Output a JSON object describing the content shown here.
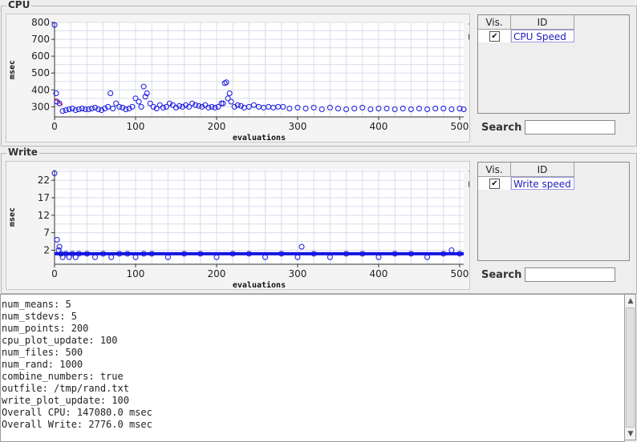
{
  "colors": {
    "point": "#1515e0",
    "mean_line": "#ff4040",
    "grid": "#d8dcea",
    "link_text": "#2020c0"
  },
  "cpu_panel": {
    "title": "CPU",
    "table": {
      "col_vis": "Vis.",
      "col_id": "ID",
      "row": {
        "visible": true,
        "id": "CPU Speed"
      }
    },
    "search_label": "Search",
    "search_value": ""
  },
  "write_panel": {
    "title": "Write",
    "table": {
      "col_vis": "Vis.",
      "col_id": "ID",
      "row": {
        "visible": true,
        "id": "Write speed"
      }
    },
    "search_label": "Search",
    "search_value": ""
  },
  "chart_data": [
    {
      "type": "scatter",
      "xlabel": "evaluations",
      "ylabel": "msec",
      "xlim": [
        0,
        505
      ],
      "ylim": [
        240,
        800
      ],
      "xticks": [
        0,
        100,
        200,
        300,
        400,
        500
      ],
      "yticks": [
        300,
        400,
        500,
        600,
        700,
        800
      ],
      "grid": true,
      "series": [
        {
          "values_note": "",
          "x": [
            0,
            2,
            3,
            6,
            10,
            14,
            18,
            22,
            26,
            30,
            34,
            38,
            42,
            46,
            50,
            54,
            58,
            62,
            66,
            69,
            72,
            76,
            80,
            84,
            88,
            92,
            96,
            100,
            104,
            107,
            110,
            112,
            114,
            118,
            122,
            126,
            130,
            134,
            138,
            142,
            146,
            150,
            154,
            158,
            162,
            166,
            170,
            174,
            178,
            182,
            186,
            190,
            194,
            198,
            202,
            206,
            208,
            210,
            212,
            214,
            216,
            218,
            222,
            226,
            230,
            234,
            240,
            246,
            252,
            258,
            264,
            270,
            276,
            282,
            290,
            300,
            310,
            320,
            330,
            340,
            350,
            360,
            370,
            380,
            390,
            400,
            410,
            420,
            430,
            440,
            450,
            460,
            470,
            480,
            490,
            500,
            505
          ],
          "y": [
            785,
            380,
            330,
            320,
            275,
            280,
            285,
            290,
            280,
            285,
            290,
            285,
            285,
            290,
            295,
            285,
            280,
            290,
            300,
            380,
            290,
            320,
            300,
            295,
            285,
            290,
            300,
            350,
            330,
            300,
            420,
            360,
            380,
            320,
            300,
            290,
            310,
            295,
            300,
            320,
            310,
            295,
            305,
            300,
            310,
            300,
            320,
            310,
            305,
            300,
            310,
            295,
            300,
            295,
            300,
            320,
            320,
            440,
            445,
            350,
            380,
            330,
            300,
            310,
            305,
            295,
            300,
            310,
            300,
            295,
            300,
            295,
            300,
            300,
            290,
            295,
            290,
            295,
            285,
            295,
            290,
            285,
            290,
            295,
            285,
            290,
            290,
            285,
            290,
            285,
            290,
            285,
            290,
            290,
            285,
            290,
            285
          ]
        }
      ]
    },
    {
      "type": "scatter",
      "xlabel": "evaluations",
      "ylabel": "msec",
      "xlim": [
        0,
        505
      ],
      "ylim": [
        -2,
        25
      ],
      "xticks": [
        0,
        100,
        200,
        300,
        400,
        500
      ],
      "yticks": [
        2,
        7,
        12,
        17,
        22
      ],
      "grid": true,
      "series": [
        {
          "x": [
            0,
            3,
            5,
            6,
            8,
            10,
            14,
            18,
            22,
            26,
            30,
            40,
            50,
            60,
            70,
            80,
            90,
            100,
            110,
            120,
            140,
            160,
            180,
            200,
            220,
            240,
            260,
            280,
            300,
            305,
            320,
            340,
            360,
            380,
            400,
            420,
            440,
            460,
            480,
            490,
            500
          ],
          "y": [
            24,
            5,
            2,
            3,
            1,
            0,
            1,
            0,
            1,
            0,
            1,
            1,
            0,
            1,
            0,
            1,
            1,
            0,
            1,
            1,
            0,
            1,
            1,
            0,
            1,
            1,
            0,
            1,
            0,
            3,
            1,
            0,
            1,
            1,
            0,
            1,
            1,
            0,
            1,
            2,
            1
          ]
        }
      ]
    }
  ],
  "log": {
    "lines": [
      "num_means: 5",
      "num_stdevs: 5",
      "num_points: 200",
      "cpu_plot_update: 100",
      "num_files: 500",
      "num_rand: 1000",
      "combine_numbers: true",
      "outfile: /tmp/rand.txt",
      "write_plot_update: 100",
      "Overall CPU: 147080.0 msec",
      "Overall Write: 2776.0 msec"
    ]
  }
}
